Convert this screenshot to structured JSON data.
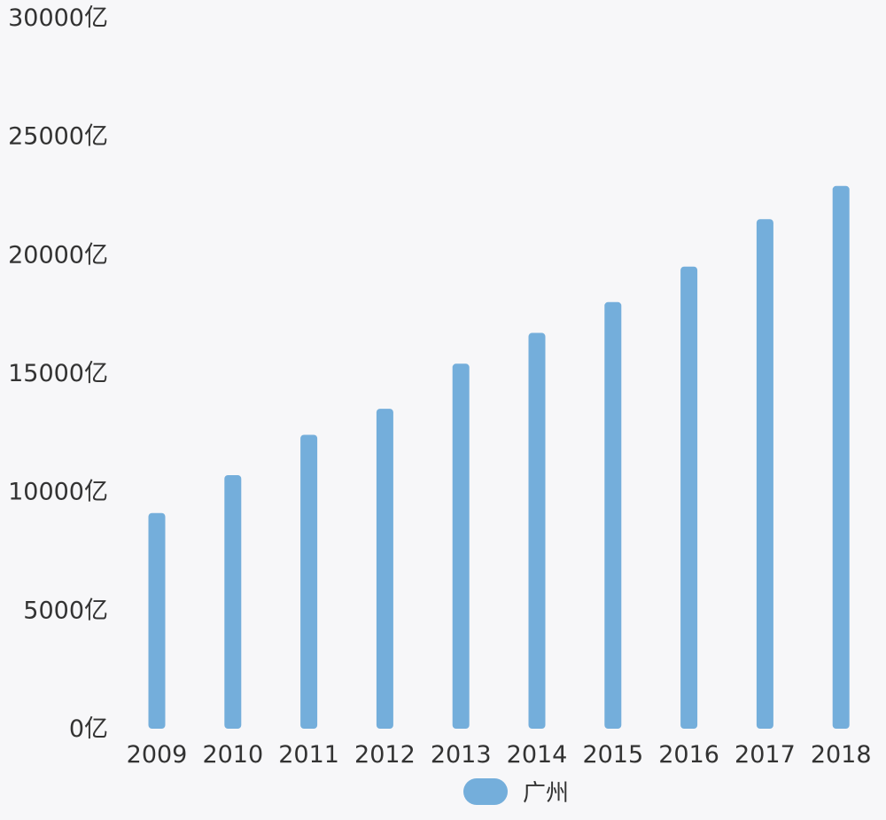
{
  "chart_data": {
    "type": "bar",
    "categories": [
      "2009",
      "2010",
      "2011",
      "2012",
      "2013",
      "2014",
      "2015",
      "2016",
      "2017",
      "2018"
    ],
    "series": [
      {
        "name": "广州",
        "color": "#74aedb",
        "values": [
          9100,
          10700,
          12400,
          13500,
          15400,
          16700,
          18000,
          19500,
          21500,
          22900
        ]
      }
    ],
    "ylim": [
      0,
      30000
    ],
    "yticks": [
      0,
      5000,
      10000,
      15000,
      20000,
      25000,
      30000
    ],
    "ytick_labels": [
      "0亿",
      "5000亿",
      "10000亿",
      "15000亿",
      "20000亿",
      "25000亿",
      "30000亿"
    ],
    "grid": false,
    "legend": "bottom-center",
    "title": "",
    "xlabel": "",
    "ylabel": ""
  }
}
